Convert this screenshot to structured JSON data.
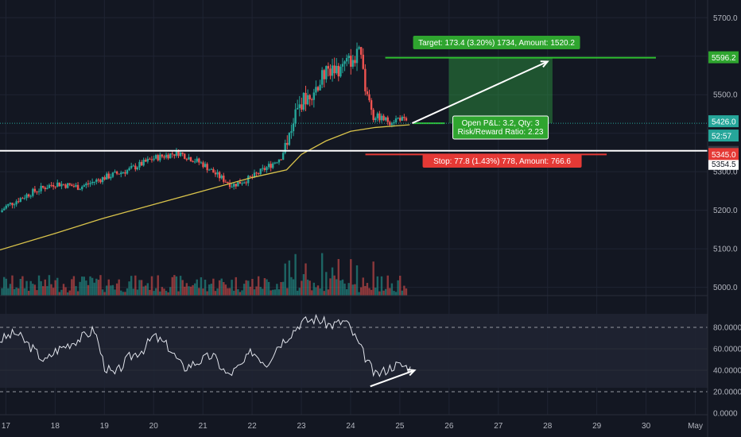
{
  "chart_data": {
    "type": "candlestick",
    "price_axis": {
      "ticks": [
        "5700.0",
        "5600.0",
        "5500.0",
        "5400.0",
        "5300.0",
        "5200.0",
        "5100.0",
        "5000.0"
      ],
      "tick_values": [
        5700,
        5600,
        5500,
        5400,
        5300,
        5200,
        5100,
        5000
      ],
      "range": [
        4995,
        5715
      ]
    },
    "rsi_axis": {
      "ticks": [
        "80.0000",
        "60.0000",
        "40.0000",
        "20.0000",
        "0.0000"
      ],
      "tick_values": [
        80,
        60,
        40,
        20,
        0
      ],
      "range": [
        0,
        100
      ],
      "band": [
        20,
        80
      ]
    },
    "time_axis": {
      "labels": [
        "17",
        "18",
        "19",
        "20",
        "21",
        "22",
        "23",
        "24",
        "25",
        "26",
        "27",
        "28",
        "29",
        "30",
        "May"
      ],
      "day_values": [
        17,
        18,
        19,
        20,
        21,
        22,
        23,
        24,
        25,
        26,
        27,
        28,
        29,
        30,
        31
      ],
      "range": [
        16.88,
        31.25
      ]
    },
    "candles_summary": {
      "start": 5195,
      "anchors": [
        [
          17,
          5210
        ],
        [
          17.5,
          5245
        ],
        [
          18,
          5270
        ],
        [
          18.5,
          5260
        ],
        [
          19,
          5285
        ],
        [
          19.5,
          5305
        ],
        [
          20,
          5335
        ],
        [
          20.5,
          5350
        ],
        [
          21,
          5320
        ],
        [
          21.3,
          5290
        ],
        [
          21.6,
          5265
        ],
        [
          22,
          5285
        ],
        [
          22.4,
          5320
        ],
        [
          22.6,
          5340
        ],
        [
          22.8,
          5420
        ],
        [
          23.0,
          5480
        ],
        [
          23.3,
          5520
        ],
        [
          23.5,
          5560
        ],
        [
          23.8,
          5570
        ],
        [
          24.0,
          5590
        ],
        [
          24.2,
          5605
        ],
        [
          24.3,
          5500
        ],
        [
          24.5,
          5445
        ],
        [
          24.8,
          5430
        ],
        [
          25.0,
          5440
        ],
        [
          25.15,
          5426
        ]
      ]
    },
    "moving_average": [
      [
        16.88,
        5097
      ],
      [
        18,
        5140
      ],
      [
        19,
        5180
      ],
      [
        20,
        5215
      ],
      [
        21,
        5250
      ],
      [
        22,
        5285
      ],
      [
        22.7,
        5305
      ],
      [
        23,
        5345
      ],
      [
        23.5,
        5380
      ],
      [
        24,
        5405
      ],
      [
        24.5,
        5415
      ],
      [
        25.2,
        5422
      ]
    ],
    "rsi_points": [
      [
        16.88,
        68
      ],
      [
        17.2,
        75
      ],
      [
        17.5,
        62
      ],
      [
        17.8,
        48
      ],
      [
        18,
        58
      ],
      [
        18.3,
        65
      ],
      [
        18.6,
        72
      ],
      [
        18.8,
        78
      ],
      [
        19,
        44
      ],
      [
        19.2,
        35
      ],
      [
        19.5,
        52
      ],
      [
        19.8,
        60
      ],
      [
        20,
        72
      ],
      [
        20.3,
        62
      ],
      [
        20.6,
        42
      ],
      [
        20.9,
        48
      ],
      [
        21.2,
        54
      ],
      [
        21.5,
        35
      ],
      [
        21.8,
        45
      ],
      [
        22,
        58
      ],
      [
        22.3,
        46
      ],
      [
        22.5,
        62
      ],
      [
        22.8,
        75
      ],
      [
        23.0,
        85
      ],
      [
        23.3,
        88
      ],
      [
        23.6,
        82
      ],
      [
        23.9,
        86
      ],
      [
        24.1,
        70
      ],
      [
        24.3,
        52
      ],
      [
        24.5,
        35
      ],
      [
        24.7,
        40
      ],
      [
        24.9,
        45
      ],
      [
        25.1,
        44
      ],
      [
        25.25,
        41
      ]
    ],
    "position": {
      "entry": 5426.0,
      "target": 5596.2,
      "stop": 5345.0,
      "start_day": 24.3,
      "target_box_end_day": 28.1,
      "target_line_end_day": 30.2,
      "stop_line_end_day": 29.2
    },
    "support_level": 5354.5,
    "price_labels": {
      "target": "5596.2",
      "entry": "5426.0",
      "countdown": "52:57",
      "current": "5422.8",
      "support": "5354.5",
      "stop": "5345.0"
    },
    "annotations": {
      "target": "Target: 173.4 (3.20%) 1734, Amount: 1520.2",
      "pnl_line1": "Open P&L: 3.2, Qty: 3",
      "pnl_line2": "Risk/Reward Ratio: 2.23",
      "stop": "Stop: 77.8 (1.43%) 778, Amount: 766.6"
    },
    "colors": {
      "background": "#131722",
      "up": "#26a69a",
      "down": "#ef5350",
      "moving_average": "#d9c34b",
      "target": "#2fbf2f",
      "stop": "#e53935",
      "rsi": "#e0e3eb",
      "support": "#ffffff",
      "arrow": "#ffffff"
    }
  }
}
